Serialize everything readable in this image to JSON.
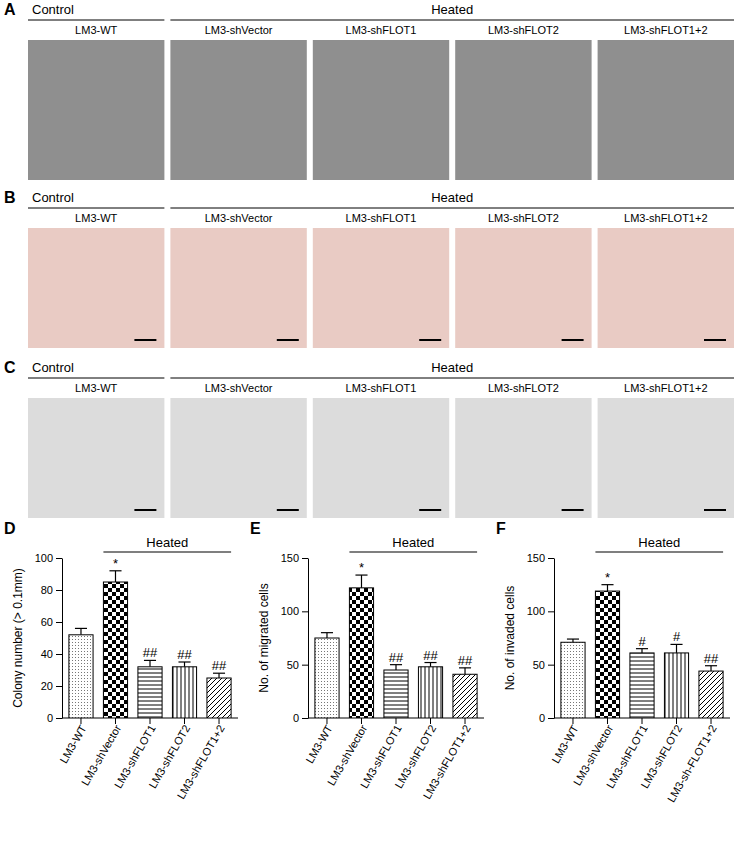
{
  "image_panels": [
    {
      "label": "A",
      "group_labels": [
        "Control",
        "Heated"
      ],
      "columns": [
        "LM3-WT",
        "LM3-shVector",
        "LM3-shFLOT1",
        "LM3-shFLOT2",
        "LM3-shFLOT1+2"
      ]
    },
    {
      "label": "B",
      "group_labels": [
        "Control",
        "Heated"
      ],
      "columns": [
        "LM3-WT",
        "LM3-shVector",
        "LM3-shFLOT1",
        "LM3-shFLOT2",
        "LM3-shFLOT1+2"
      ]
    },
    {
      "label": "C",
      "group_labels": [
        "Control",
        "Heated"
      ],
      "columns": [
        "LM3-WT",
        "LM3-shVector",
        "LM3-shFLOT1",
        "LM3-shFLOT2",
        "LM3-shFLOT1+2"
      ]
    }
  ],
  "chart_data": [
    {
      "type": "bar",
      "title": "D",
      "y_label": "Colony number (> 0.1mm)",
      "bracket_label": "Heated",
      "categories": [
        "LM3-WT",
        "LM3-shVector",
        "LM3-shFLOT1",
        "LM3-shFLOT2",
        "LM3-shFLOT1+2"
      ],
      "values": [
        52,
        85,
        32,
        32,
        25
      ],
      "errors": [
        4,
        7,
        4,
        3,
        3
      ],
      "annotations": [
        "",
        "*",
        "##",
        "##",
        "##"
      ],
      "ylim": [
        0,
        100
      ],
      "yticks": [
        0,
        20,
        40,
        60,
        80,
        100
      ]
    },
    {
      "type": "bar",
      "title": "E",
      "y_label": "No. of migrated cells",
      "bracket_label": "Heated",
      "categories": [
        "LM3-WT",
        "LM3-shVector",
        "LM3-shFLOT1",
        "LM3-shFLOT2",
        "LM3-shFLOT1+2"
      ],
      "values": [
        75,
        122,
        45,
        48,
        41
      ],
      "errors": [
        5,
        12,
        5,
        4,
        6
      ],
      "annotations": [
        "",
        "*",
        "##",
        "##",
        "##"
      ],
      "ylim": [
        0,
        150
      ],
      "yticks": [
        0,
        50,
        100,
        150
      ]
    },
    {
      "type": "bar",
      "title": "F",
      "y_label": "No. of invaded cells",
      "bracket_label": "Heated",
      "categories": [
        "LM3-WT",
        "LM3-shVector",
        "LM3-shFLOT1",
        "LM3-shFLOT2",
        "LM3-sh-FLOT1+2"
      ],
      "values": [
        71,
        119,
        61,
        61,
        44
      ],
      "errors": [
        3,
        6,
        4,
        8,
        5
      ],
      "annotations": [
        "",
        "*",
        "#",
        "#",
        "##"
      ],
      "ylim": [
        0,
        150
      ],
      "yticks": [
        0,
        50,
        100,
        150
      ]
    }
  ]
}
